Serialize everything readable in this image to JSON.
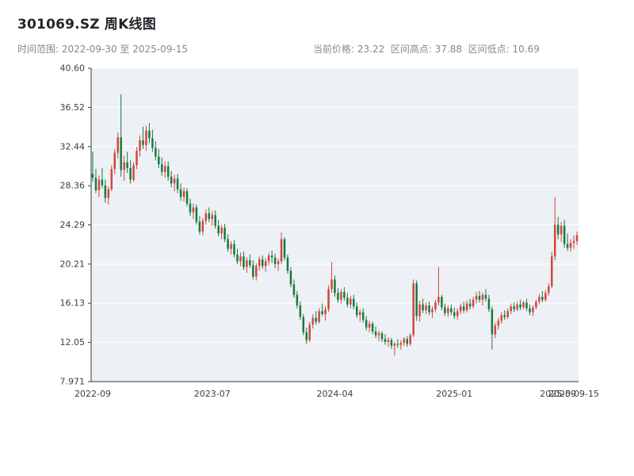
{
  "header": {
    "title": "301069.SZ 周K线图",
    "range_label": "时间范围: 2022-09-30 至 2025-09-15",
    "stats_label": "当前价格: 23.22  区间高点: 37.88  区间低点: 10.69"
  },
  "chart_data": {
    "type": "candlestick",
    "title": "301069.SZ 周K线图",
    "interval": "weekly",
    "date_start": "2022-09-30",
    "date_end": "2025-09-15",
    "current_price": 23.22,
    "range_high": 37.88,
    "range_low": 10.69,
    "ylim": [
      7.971,
      40.6
    ],
    "grid": true,
    "y_ticks": [
      {
        "label": "40.60",
        "value": 40.6
      },
      {
        "label": "36.52",
        "value": 36.52
      },
      {
        "label": "32.44",
        "value": 32.44
      },
      {
        "label": "28.36",
        "value": 28.36
      },
      {
        "label": "24.29",
        "value": 24.29
      },
      {
        "label": "20.21",
        "value": 20.21
      },
      {
        "label": "16.13",
        "value": 16.13
      },
      {
        "label": "12.05",
        "value": 12.05
      },
      {
        "label": "7.971",
        "value": 7.971
      }
    ],
    "x_ticks": [
      {
        "label": "2022-09",
        "i": 0
      },
      {
        "label": "2023-07",
        "i": 38
      },
      {
        "label": "2024-04",
        "i": 77
      },
      {
        "label": "2025-01",
        "i": 115
      },
      {
        "label": "2025-09",
        "i": 148
      },
      {
        "label": "2025-09-15",
        "i": 153
      }
    ],
    "colors": {
      "up": "#d0473d",
      "down": "#177a41",
      "plot_bg": "#edf0f4",
      "grid": "#ffffff",
      "axis": "#35383d",
      "tick_text": "#3b3e45",
      "title_text": "#23252b",
      "subtitle_text": "#85888f"
    },
    "ohlc": [
      [
        29.6,
        31.9,
        28.8,
        29.2
      ],
      [
        29.2,
        30.1,
        27.6,
        27.9
      ],
      [
        27.9,
        29.4,
        27.2,
        29.0
      ],
      [
        29.0,
        30.2,
        28.1,
        28.4
      ],
      [
        28.4,
        29.0,
        26.6,
        27.1
      ],
      [
        27.1,
        28.3,
        26.4,
        28.0
      ],
      [
        28.0,
        30.5,
        27.8,
        30.1
      ],
      [
        30.1,
        32.2,
        29.6,
        31.8
      ],
      [
        31.8,
        33.9,
        31.2,
        33.4
      ],
      [
        33.4,
        37.88,
        29.3,
        30.0
      ],
      [
        30.0,
        31.5,
        28.9,
        30.8
      ],
      [
        30.8,
        31.9,
        29.7,
        30.2
      ],
      [
        30.2,
        31.0,
        28.6,
        29.0
      ],
      [
        29.0,
        30.8,
        28.8,
        30.5
      ],
      [
        30.5,
        32.4,
        30.1,
        32.0
      ],
      [
        32.0,
        33.6,
        31.4,
        33.1
      ],
      [
        33.1,
        34.5,
        32.2,
        32.6
      ],
      [
        32.6,
        34.6,
        32.0,
        34.1
      ],
      [
        34.1,
        34.9,
        32.8,
        33.3
      ],
      [
        33.3,
        34.2,
        31.9,
        32.3
      ],
      [
        32.3,
        33.0,
        31.0,
        31.4
      ],
      [
        31.4,
        32.2,
        30.2,
        30.6
      ],
      [
        30.6,
        31.3,
        29.4,
        29.8
      ],
      [
        29.8,
        30.9,
        29.2,
        30.4
      ],
      [
        30.4,
        30.9,
        28.9,
        29.3
      ],
      [
        29.3,
        29.9,
        28.2,
        28.6
      ],
      [
        28.6,
        29.5,
        27.8,
        29.1
      ],
      [
        29.1,
        29.6,
        27.6,
        28.0
      ],
      [
        28.0,
        28.6,
        26.8,
        27.2
      ],
      [
        27.2,
        28.2,
        26.7,
        27.8
      ],
      [
        27.8,
        28.1,
        26.2,
        26.5
      ],
      [
        26.5,
        27.0,
        25.2,
        25.6
      ],
      [
        25.6,
        26.5,
        24.9,
        26.1
      ],
      [
        26.1,
        26.4,
        24.3,
        24.6
      ],
      [
        24.6,
        25.2,
        23.3,
        23.6
      ],
      [
        23.6,
        25.0,
        23.2,
        24.7
      ],
      [
        24.7,
        25.9,
        24.3,
        25.5
      ],
      [
        25.5,
        26.1,
        24.6,
        24.9
      ],
      [
        24.9,
        25.7,
        24.2,
        25.3
      ],
      [
        25.3,
        25.8,
        23.9,
        24.2
      ],
      [
        24.2,
        24.8,
        23.1,
        23.4
      ],
      [
        23.4,
        24.3,
        22.8,
        24.0
      ],
      [
        24.0,
        24.4,
        22.5,
        22.8
      ],
      [
        22.8,
        23.3,
        21.5,
        21.8
      ],
      [
        21.8,
        22.6,
        21.2,
        22.3
      ],
      [
        22.3,
        22.7,
        20.9,
        21.2
      ],
      [
        21.2,
        21.8,
        20.2,
        20.5
      ],
      [
        20.5,
        21.4,
        20.0,
        21.0
      ],
      [
        21.0,
        21.5,
        19.6,
        19.9
      ],
      [
        19.9,
        20.9,
        19.3,
        20.6
      ],
      [
        20.6,
        21.2,
        19.8,
        20.1
      ],
      [
        20.1,
        20.6,
        18.6,
        18.9
      ],
      [
        18.9,
        20.3,
        18.5,
        20.0
      ],
      [
        20.0,
        21.0,
        19.5,
        20.7
      ],
      [
        20.7,
        21.1,
        19.7,
        20.0
      ],
      [
        20.0,
        20.8,
        19.4,
        20.5
      ],
      [
        20.5,
        21.4,
        20.1,
        21.1
      ],
      [
        21.1,
        21.6,
        20.3,
        20.9
      ],
      [
        20.9,
        21.3,
        19.8,
        20.2
      ],
      [
        20.2,
        20.8,
        19.5,
        20.5
      ],
      [
        20.5,
        23.5,
        20.2,
        22.8
      ],
      [
        22.8,
        23.0,
        20.6,
        20.9
      ],
      [
        20.9,
        21.2,
        19.2,
        19.5
      ],
      [
        19.5,
        19.9,
        17.8,
        18.1
      ],
      [
        18.1,
        18.6,
        16.7,
        17.0
      ],
      [
        17.0,
        17.4,
        15.6,
        15.9
      ],
      [
        15.9,
        16.3,
        14.4,
        14.7
      ],
      [
        14.7,
        15.0,
        12.8,
        13.1
      ],
      [
        13.1,
        13.6,
        11.9,
        12.3
      ],
      [
        12.3,
        14.2,
        12.1,
        13.9
      ],
      [
        13.9,
        15.0,
        13.5,
        14.6
      ],
      [
        14.6,
        15.3,
        13.9,
        14.2
      ],
      [
        14.2,
        15.6,
        14.0,
        15.3
      ],
      [
        15.3,
        16.1,
        14.8,
        15.0
      ],
      [
        15.0,
        15.8,
        14.3,
        15.5
      ],
      [
        15.5,
        18.0,
        15.2,
        17.6
      ],
      [
        17.6,
        20.4,
        17.2,
        18.6
      ],
      [
        18.6,
        19.0,
        16.8,
        17.2
      ],
      [
        17.2,
        17.7,
        16.2,
        16.5
      ],
      [
        16.5,
        17.6,
        16.1,
        17.3
      ],
      [
        17.3,
        17.8,
        16.4,
        16.7
      ],
      [
        16.7,
        17.2,
        15.7,
        16.0
      ],
      [
        16.0,
        16.9,
        15.6,
        16.6
      ],
      [
        16.6,
        17.0,
        15.5,
        15.8
      ],
      [
        15.8,
        16.2,
        14.6,
        14.9
      ],
      [
        14.9,
        15.5,
        14.2,
        15.2
      ],
      [
        15.2,
        15.6,
        14.1,
        14.4
      ],
      [
        14.4,
        14.8,
        13.3,
        13.6
      ],
      [
        13.6,
        14.3,
        13.1,
        14.0
      ],
      [
        14.0,
        14.2,
        12.9,
        13.2
      ],
      [
        13.2,
        13.7,
        12.5,
        12.8
      ],
      [
        12.8,
        13.3,
        12.2,
        13.0
      ],
      [
        13.0,
        13.2,
        12.1,
        12.4
      ],
      [
        12.4,
        12.9,
        11.8,
        12.1
      ],
      [
        12.1,
        12.6,
        11.6,
        12.3
      ],
      [
        12.3,
        12.5,
        11.4,
        11.7
      ],
      [
        11.7,
        12.1,
        10.69,
        11.9
      ],
      [
        11.9,
        12.4,
        11.5,
        11.8
      ],
      [
        11.8,
        12.3,
        11.3,
        12.0
      ],
      [
        12.0,
        12.6,
        11.7,
        12.4
      ],
      [
        12.4,
        12.7,
        11.6,
        11.9
      ],
      [
        11.9,
        13.0,
        11.7,
        12.8
      ],
      [
        12.8,
        18.6,
        12.6,
        18.2
      ],
      [
        18.2,
        18.5,
        14.3,
        14.8
      ],
      [
        14.8,
        16.4,
        14.2,
        16.0
      ],
      [
        16.0,
        16.6,
        15.1,
        15.4
      ],
      [
        15.4,
        16.2,
        15.0,
        15.9
      ],
      [
        15.9,
        16.3,
        14.9,
        15.2
      ],
      [
        15.2,
        15.8,
        14.6,
        15.5
      ],
      [
        15.5,
        16.5,
        15.2,
        16.2
      ],
      [
        16.2,
        19.9,
        15.9,
        16.8
      ],
      [
        16.8,
        17.0,
        15.4,
        15.7
      ],
      [
        15.7,
        16.1,
        14.8,
        15.1
      ],
      [
        15.1,
        15.9,
        14.7,
        15.6
      ],
      [
        15.6,
        16.0,
        14.9,
        15.2
      ],
      [
        15.2,
        15.7,
        14.5,
        14.8
      ],
      [
        14.8,
        15.6,
        14.4,
        15.3
      ],
      [
        15.3,
        16.1,
        15.0,
        15.8
      ],
      [
        15.8,
        16.3,
        15.1,
        15.4
      ],
      [
        15.4,
        16.4,
        15.2,
        16.1
      ],
      [
        16.1,
        16.6,
        15.5,
        15.8
      ],
      [
        15.8,
        16.8,
        15.6,
        16.5
      ],
      [
        16.5,
        17.3,
        16.1,
        16.9
      ],
      [
        16.9,
        17.4,
        16.2,
        16.5
      ],
      [
        16.5,
        17.2,
        15.9,
        17.0
      ],
      [
        17.0,
        17.6,
        16.3,
        16.6
      ],
      [
        16.6,
        17.0,
        15.2,
        15.5
      ],
      [
        15.5,
        15.8,
        11.3,
        12.9
      ],
      [
        12.9,
        14.1,
        12.5,
        13.8
      ],
      [
        13.8,
        14.6,
        13.4,
        14.3
      ],
      [
        14.3,
        15.2,
        14.0,
        14.9
      ],
      [
        14.9,
        15.4,
        14.4,
        14.7
      ],
      [
        14.7,
        15.6,
        14.5,
        15.3
      ],
      [
        15.3,
        16.1,
        15.0,
        15.8
      ],
      [
        15.8,
        16.2,
        15.2,
        15.5
      ],
      [
        15.5,
        16.3,
        15.3,
        16.0
      ],
      [
        16.0,
        16.5,
        15.4,
        15.7
      ],
      [
        15.7,
        16.4,
        15.5,
        16.2
      ],
      [
        16.2,
        16.6,
        15.3,
        15.6
      ],
      [
        15.6,
        16.0,
        14.9,
        15.2
      ],
      [
        15.2,
        15.9,
        14.8,
        15.7
      ],
      [
        15.7,
        16.5,
        15.5,
        16.3
      ],
      [
        16.3,
        17.1,
        16.0,
        16.8
      ],
      [
        16.8,
        17.4,
        16.2,
        16.5
      ],
      [
        16.5,
        17.5,
        16.3,
        17.2
      ],
      [
        17.2,
        18.2,
        16.9,
        17.9
      ],
      [
        17.9,
        21.5,
        17.7,
        21.0
      ],
      [
        21.0,
        27.2,
        20.6,
        24.3
      ],
      [
        24.3,
        25.1,
        22.8,
        23.3
      ],
      [
        23.3,
        24.6,
        22.5,
        24.2
      ],
      [
        24.2,
        24.8,
        21.9,
        22.3
      ],
      [
        22.3,
        23.4,
        21.6,
        21.9
      ],
      [
        21.9,
        22.8,
        21.5,
        22.4
      ],
      [
        22.4,
        23.2,
        21.8,
        22.6
      ],
      [
        22.6,
        23.6,
        22.2,
        23.22
      ]
    ]
  }
}
